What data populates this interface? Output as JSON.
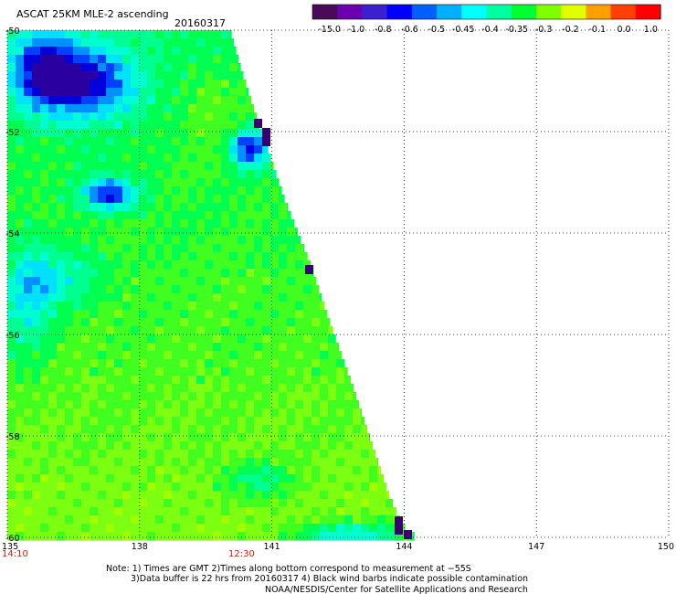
{
  "header": {
    "product": "ASCAT 25KM MLE-2 ascending",
    "date": "20160317"
  },
  "colorbar": {
    "labels": [
      "-15.0",
      "-1.0",
      "-0.8",
      "-0.6",
      "-0.5",
      "-0.45",
      "-0.4",
      "-0.35",
      "-0.3",
      "-0.2",
      "-0.1",
      "0.0",
      "1.0"
    ],
    "colors": [
      "#4a0a5a",
      "#6a00b0",
      "#3b20d0",
      "#0000ff",
      "#0060ff",
      "#00b0ff",
      "#00ffff",
      "#00ffa0",
      "#00ff30",
      "#80ff00",
      "#e0ff00",
      "#ffa000",
      "#ff4000",
      "#ff0000"
    ]
  },
  "map": {
    "lon_range": [
      135,
      150
    ],
    "lat_range": [
      -60,
      -50
    ],
    "lon_ticks": [
      "135",
      "138",
      "141",
      "144",
      "147",
      "150"
    ],
    "lat_ticks": [
      "-50",
      "-52",
      "-54",
      "-56",
      "-58",
      "-60"
    ],
    "time_labels": [
      "14:10",
      "12:30"
    ]
  },
  "notes": {
    "line1": "Note: 1) Times are GMT 2)Times along bottom correspond to measurement at −55S",
    "line2": "3)Data buffer is 22 hrs from 20160317 4) Black wind barbs indicate possible contamination",
    "line3": "NOAA/NESDIS/Center for Satellite Applications and Research"
  }
}
